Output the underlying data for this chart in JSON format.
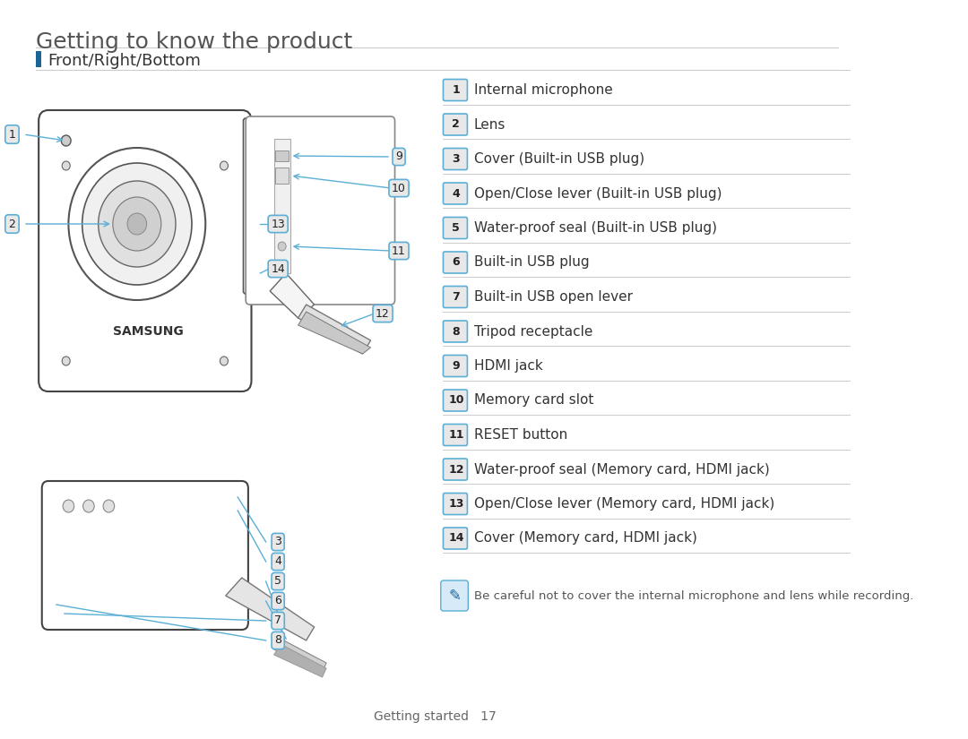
{
  "title": "Getting to know the product",
  "section": "Front/Right/Bottom",
  "items": [
    {
      "num": "1",
      "text": "Internal microphone"
    },
    {
      "num": "2",
      "text": "Lens"
    },
    {
      "num": "3",
      "text": "Cover (Built-in USB plug)"
    },
    {
      "num": "4",
      "text": "Open/Close lever (Built-in USB plug)"
    },
    {
      "num": "5",
      "text": "Water-proof seal (Built-in USB plug)"
    },
    {
      "num": "6",
      "text": "Built-in USB plug"
    },
    {
      "num": "7",
      "text": "Built-in USB open lever"
    },
    {
      "num": "8",
      "text": "Tripod receptacle"
    },
    {
      "num": "9",
      "text": "HDMI jack"
    },
    {
      "num": "10",
      "text": "Memory card slot"
    },
    {
      "num": "11",
      "text": "RESET button"
    },
    {
      "num": "12",
      "text": "Water-proof seal (Memory card, HDMI jack)"
    },
    {
      "num": "13",
      "text": "Open/Close lever (Memory card, HDMI jack)"
    },
    {
      "num": "14",
      "text": "Cover (Memory card, HDMI jack)"
    }
  ],
  "note": "Be careful not to cover the internal microphone and lens while recording.",
  "footer": "Getting started   17",
  "bg_color": "#ffffff",
  "title_color": "#555555",
  "section_bar_color": "#1a6496",
  "label_box_color": "#e8e8e8",
  "label_border_color": "#5bafd6",
  "label_text_color": "#222222",
  "line_color": "#cccccc",
  "note_box_color": "#d6eaf8",
  "note_icon_color": "#5bafd6"
}
